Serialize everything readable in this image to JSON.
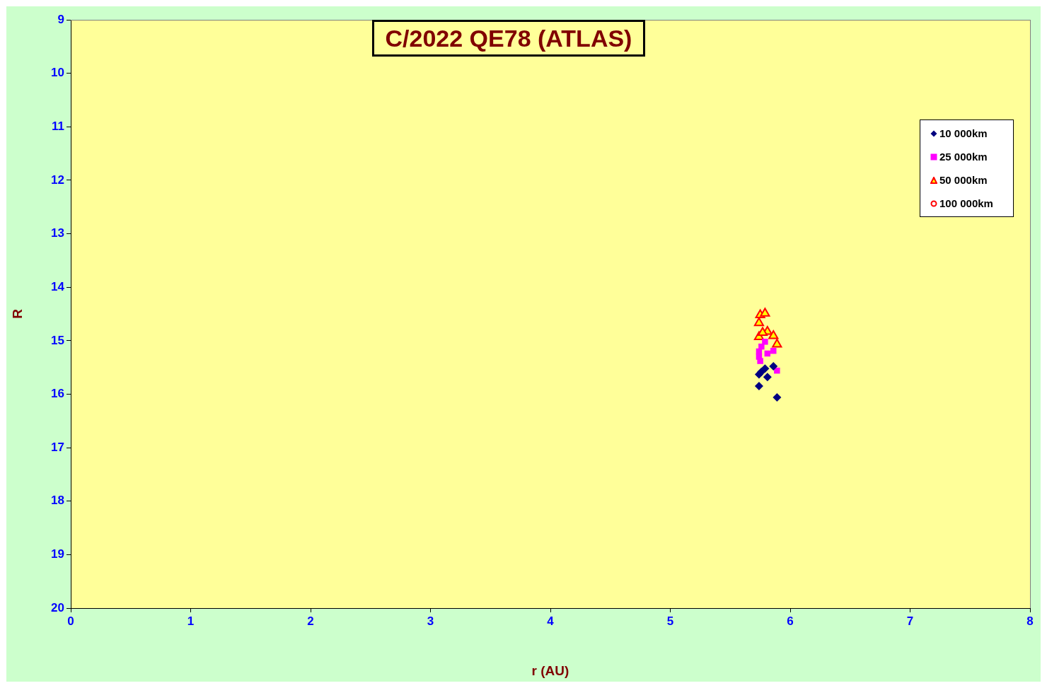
{
  "chart_data": {
    "type": "scatter",
    "title": "C/2022 QE78 (ATLAS)",
    "xlabel": "r (AU)",
    "ylabel": "R",
    "xlim": [
      0,
      8
    ],
    "xticks": [
      0,
      1,
      2,
      3,
      4,
      5,
      6,
      7,
      8
    ],
    "ylim": [
      20,
      9
    ],
    "yticks": [
      9,
      10,
      11,
      12,
      13,
      14,
      15,
      16,
      17,
      18,
      19,
      20
    ],
    "grid": false,
    "legend": "top right",
    "series": [
      {
        "name": "10 000km",
        "color": "#000080",
        "marker": "diamond",
        "x": [
          5.74,
          5.74,
          5.76,
          5.79,
          5.81,
          5.86,
          5.89
        ],
        "values": [
          15.85,
          15.63,
          15.58,
          15.52,
          15.68,
          15.48,
          16.06
        ]
      },
      {
        "name": "25 000km",
        "color": "#ff00ff",
        "marker": "square",
        "x": [
          5.74,
          5.74,
          5.76,
          5.79,
          5.81,
          5.86,
          5.89,
          5.75
        ],
        "values": [
          15.3,
          15.2,
          15.11,
          15.02,
          15.24,
          15.19,
          15.56,
          15.38
        ]
      },
      {
        "name": "50 000km",
        "color": "#ff0000",
        "marker": "triangle",
        "x": [
          5.75,
          5.79,
          5.74,
          5.76,
          5.81,
          5.86,
          5.89,
          5.74,
          5.77
        ],
        "values": [
          14.52,
          14.49,
          14.67,
          null,
          14.83,
          14.91,
          15.07,
          14.93,
          14.85
        ]
      },
      {
        "name": "100 000km",
        "color": "#ff0000",
        "marker": "circle"
      }
    ]
  }
}
